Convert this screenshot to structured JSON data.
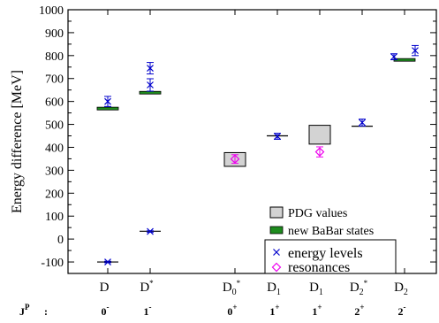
{
  "chart_data": {
    "type": "scatter",
    "ylabel": "Energy difference [MeV]",
    "ylim": [
      -150,
      1000
    ],
    "yticks": [
      -100,
      0,
      100,
      200,
      300,
      400,
      500,
      600,
      700,
      800,
      900,
      1000
    ],
    "jp_prefix": "J",
    "jp_prefix_sup": "P",
    "jp_colon": ":",
    "categories": [
      {
        "main": "D",
        "sub": "",
        "sup": "",
        "jp_main": "0",
        "jp_sup": "-"
      },
      {
        "main": "D",
        "sub": "",
        "sup": "*",
        "jp_main": "1",
        "jp_sup": "-"
      },
      {
        "main": "D",
        "sub": "0",
        "sup": "*",
        "jp_main": "0",
        "jp_sup": "+"
      },
      {
        "main": "D",
        "sub": "1",
        "sup": "",
        "jp_main": "1",
        "jp_sup": "+"
      },
      {
        "main": "D",
        "sub": "1",
        "sup": "",
        "jp_main": "1",
        "jp_sup": "+"
      },
      {
        "main": "D",
        "sub": "2",
        "sup": "*",
        "jp_main": "2",
        "jp_sup": "+"
      },
      {
        "main": "D",
        "sub": "2",
        "sup": "",
        "jp_main": "2",
        "jp_sup": "-"
      }
    ],
    "pdg_values": [
      {
        "category": 0,
        "low": -103,
        "high": -97
      },
      {
        "category": 1,
        "low": 31,
        "high": 37
      },
      {
        "category": 2,
        "low": 317,
        "high": 377
      },
      {
        "category": 3,
        "low": 447,
        "high": 453
      },
      {
        "category": 4,
        "low": 414,
        "high": 496
      },
      {
        "category": 5,
        "low": 489,
        "high": 495
      }
    ],
    "babar_states": [
      {
        "category": 0,
        "low": 563,
        "high": 575
      },
      {
        "category": 1,
        "low": 636,
        "high": 644
      },
      {
        "category": 6,
        "low": 779,
        "high": 787
      }
    ],
    "energy_levels": [
      {
        "category": 0,
        "offset": 0,
        "value": -100,
        "error": 3
      },
      {
        "category": 0,
        "offset": 0,
        "value": 600,
        "error": 22
      },
      {
        "category": 1,
        "offset": 0,
        "value": 33,
        "error": 3
      },
      {
        "category": 1,
        "offset": 0,
        "value": 672,
        "error": 27
      },
      {
        "category": 1,
        "offset": 0,
        "value": 745,
        "error": 25
      },
      {
        "category": 3,
        "offset": 0,
        "value": 448,
        "error": 13
      },
      {
        "category": 5,
        "offset": 0,
        "value": 508,
        "error": 15
      },
      {
        "category": 6,
        "offset": -0.25,
        "value": 795,
        "error": 13
      },
      {
        "category": 6,
        "offset": 0.25,
        "value": 822,
        "error": 22
      }
    ],
    "resonances": [
      {
        "category": 2,
        "value": 349,
        "error": 19
      },
      {
        "category": 4,
        "value": 380,
        "error": 22
      }
    ],
    "legend": {
      "placement": "bottom-right",
      "box1": [
        "PDG values",
        "new BaBar states"
      ],
      "box2": [
        "energy levels",
        "resonances"
      ]
    },
    "colors": {
      "pdg_fill": "#d3d3d3",
      "babar_fill": "#1e8c1e",
      "energy_levels": "#0000cc",
      "resonances": "#ee00ee",
      "axis": "#000000"
    }
  }
}
